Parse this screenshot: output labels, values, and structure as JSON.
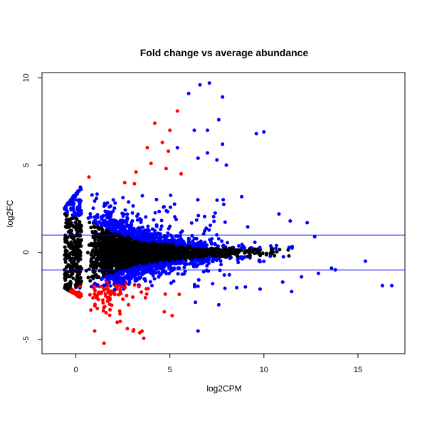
{
  "chart_data": {
    "type": "scatter",
    "title": "Fold change vs average abundance",
    "xlabel": "log2CPM",
    "ylabel": "log2FC",
    "xlim": [
      -1.8,
      17.5
    ],
    "ylim": [
      -5.8,
      10.3
    ],
    "x_ticks": [
      0,
      5,
      10,
      15
    ],
    "y_ticks": [
      -5,
      0,
      5,
      10
    ],
    "hlines": [
      1,
      -1
    ],
    "grid": false,
    "colors": {
      "not_significant": "#000000",
      "significant": "#0000ff",
      "significant_large_fc": "#ff0000",
      "threshold_line": "#0000ff"
    },
    "series": [
      {
        "values_note": "representative outlier points read from the plot",
        "color_key": "significant",
        "points": [
          [
            6.6,
            9.6
          ],
          [
            7.1,
            9.7
          ],
          [
            6.0,
            9.1
          ],
          [
            7.8,
            8.9
          ],
          [
            7.6,
            7.6
          ],
          [
            6.3,
            7.0
          ],
          [
            7.0,
            7.0
          ],
          [
            9.6,
            6.8
          ],
          [
            10.0,
            6.9
          ],
          [
            7.8,
            6.2
          ],
          [
            5.4,
            6.0
          ],
          [
            6.5,
            5.4
          ],
          [
            7.0,
            5.7
          ],
          [
            7.5,
            5.3
          ],
          [
            8.0,
            5.0
          ],
          [
            10.8,
            2.2
          ],
          [
            11.4,
            1.8
          ],
          [
            12.3,
            1.7
          ],
          [
            12.7,
            0.9
          ],
          [
            15.4,
            -0.5
          ],
          [
            16.3,
            -1.9
          ],
          [
            16.8,
            -1.9
          ],
          [
            13.8,
            -1.0
          ],
          [
            12.9,
            -1.2
          ],
          [
            13.6,
            -0.9
          ],
          [
            6.5,
            -4.5
          ],
          [
            7.6,
            -3.0
          ],
          [
            9.8,
            -2.1
          ],
          [
            11.0,
            -1.7
          ],
          [
            12.0,
            -1.4
          ]
        ]
      },
      {
        "color_key": "significant_large_fc",
        "points": [
          [
            5.4,
            8.1
          ],
          [
            4.2,
            7.4
          ],
          [
            5.0,
            7.0
          ],
          [
            4.6,
            6.3
          ],
          [
            3.8,
            6.0
          ],
          [
            4.0,
            5.1
          ],
          [
            4.8,
            4.8
          ],
          [
            5.6,
            4.5
          ],
          [
            3.2,
            4.6
          ],
          [
            2.6,
            4.0
          ],
          [
            1.5,
            -5.2
          ],
          [
            1.0,
            -4.5
          ],
          [
            2.2,
            -4.0
          ],
          [
            3.4,
            -4.6
          ],
          [
            4.7,
            -3.4
          ],
          [
            1.8,
            -3.6
          ],
          [
            0.8,
            -3.3
          ],
          [
            2.8,
            -3.0
          ],
          [
            3.7,
            -2.6
          ],
          [
            5.5,
            -2.4
          ]
        ]
      }
    ]
  }
}
